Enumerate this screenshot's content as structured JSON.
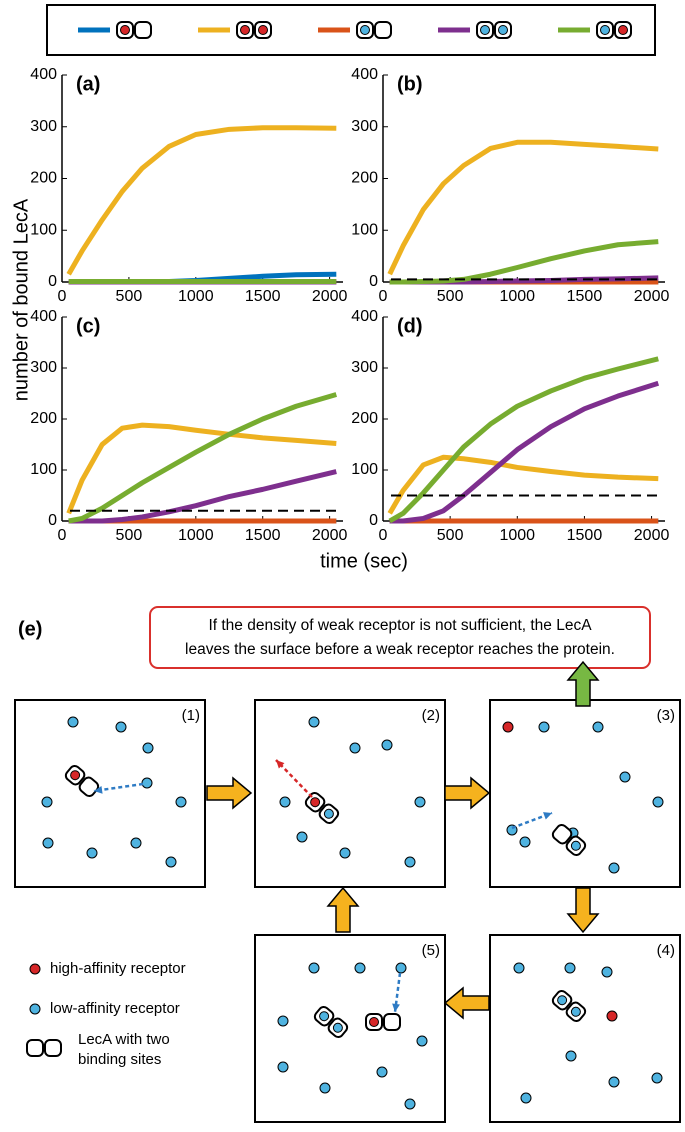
{
  "chart_data": [
    {
      "type": "line",
      "title": "(a)",
      "x": [
        50,
        150,
        300,
        450,
        600,
        800,
        1000,
        1250,
        1500,
        1750,
        2050
      ],
      "series": [
        {
          "color": "#0072bd",
          "values": [
            0,
            0,
            0,
            0,
            0,
            1,
            3,
            7,
            11,
            14,
            15
          ]
        },
        {
          "color": "#edb120",
          "values": [
            15,
            60,
            120,
            175,
            220,
            262,
            285,
            295,
            298,
            298,
            297
          ]
        },
        {
          "color": "#d95319",
          "values": [
            0,
            0,
            0,
            0,
            0,
            0,
            0,
            0,
            0,
            0,
            0
          ]
        },
        {
          "color": "#7e2f8e",
          "values": [
            0,
            0,
            0,
            0,
            0,
            0,
            0,
            0,
            0,
            0,
            0
          ]
        },
        {
          "color": "#77ac30",
          "values": [
            1,
            1,
            1,
            1,
            1,
            1,
            1,
            1,
            1,
            1,
            1
          ]
        }
      ],
      "xlim": [
        0,
        2100
      ],
      "ylim": [
        0,
        400
      ],
      "xticks": [
        0,
        500,
        1000,
        1500,
        2000
      ],
      "yticks": [
        0,
        100,
        200,
        300,
        400
      ]
    },
    {
      "type": "line",
      "title": "(b)",
      "x": [
        50,
        150,
        300,
        450,
        600,
        800,
        1000,
        1250,
        1500,
        1750,
        2050
      ],
      "series": [
        {
          "color": "#0072bd",
          "values": [
            0,
            0,
            0,
            0,
            0,
            0,
            0,
            0,
            0,
            0,
            0
          ]
        },
        {
          "color": "#edb120",
          "values": [
            15,
            70,
            140,
            190,
            225,
            258,
            270,
            270,
            266,
            262,
            257
          ]
        },
        {
          "color": "#d95319",
          "values": [
            0,
            0,
            0,
            0,
            0,
            0,
            0,
            0,
            0,
            0,
            0
          ]
        },
        {
          "color": "#7e2f8e",
          "values": [
            0,
            0,
            0,
            0,
            0,
            1,
            2,
            3,
            5,
            6,
            8
          ]
        },
        {
          "color": "#77ac30",
          "values": [
            0,
            0,
            1,
            2,
            5,
            15,
            28,
            45,
            60,
            72,
            78
          ]
        }
      ],
      "hline": 5,
      "xlim": [
        0,
        2100
      ],
      "ylim": [
        0,
        400
      ],
      "xticks": [
        0,
        500,
        1000,
        1500,
        2000
      ],
      "yticks": [
        0,
        100,
        200,
        300,
        400
      ]
    },
    {
      "type": "line",
      "title": "(c)",
      "x": [
        50,
        150,
        300,
        450,
        600,
        800,
        1000,
        1250,
        1500,
        1750,
        2050
      ],
      "series": [
        {
          "color": "#0072bd",
          "values": [
            0,
            0,
            0,
            0,
            0,
            0,
            0,
            0,
            0,
            0,
            0
          ]
        },
        {
          "color": "#edb120",
          "values": [
            15,
            80,
            150,
            182,
            188,
            185,
            178,
            170,
            163,
            158,
            152
          ]
        },
        {
          "color": "#d95319",
          "values": [
            0,
            0,
            0,
            0,
            0,
            0,
            0,
            0,
            0,
            0,
            0
          ]
        },
        {
          "color": "#7e2f8e",
          "values": [
            0,
            0,
            0,
            3,
            8,
            18,
            30,
            48,
            62,
            78,
            97
          ]
        },
        {
          "color": "#77ac30",
          "values": [
            0,
            5,
            25,
            50,
            75,
            105,
            135,
            170,
            200,
            225,
            248
          ]
        }
      ],
      "hline": 20,
      "xlim": [
        0,
        2100
      ],
      "ylim": [
        0,
        400
      ],
      "xticks": [
        0,
        500,
        1000,
        1500,
        2000
      ],
      "yticks": [
        0,
        100,
        200,
        300,
        400
      ]
    },
    {
      "type": "line",
      "title": "(d)",
      "x": [
        50,
        150,
        300,
        450,
        600,
        800,
        1000,
        1250,
        1500,
        1750,
        2050
      ],
      "series": [
        {
          "color": "#0072bd",
          "values": [
            0,
            0,
            0,
            0,
            0,
            0,
            0,
            0,
            0,
            0,
            0
          ]
        },
        {
          "color": "#edb120",
          "values": [
            15,
            60,
            110,
            125,
            122,
            115,
            105,
            97,
            90,
            86,
            83
          ]
        },
        {
          "color": "#d95319",
          "values": [
            0,
            0,
            0,
            0,
            0,
            0,
            0,
            0,
            0,
            0,
            0
          ]
        },
        {
          "color": "#7e2f8e",
          "values": [
            0,
            0,
            5,
            20,
            50,
            95,
            140,
            185,
            220,
            245,
            270
          ]
        },
        {
          "color": "#77ac30",
          "values": [
            0,
            15,
            55,
            100,
            145,
            190,
            225,
            255,
            280,
            298,
            318
          ]
        }
      ],
      "hline": 50,
      "xlim": [
        0,
        2100
      ],
      "ylim": [
        0,
        400
      ],
      "xticks": [
        0,
        500,
        1000,
        1500,
        2000
      ],
      "yticks": [
        0,
        100,
        200,
        300,
        400
      ]
    }
  ],
  "axis_labels": {
    "y": "number of bound LecA",
    "x": "time (sec)"
  },
  "diagram": {
    "title": "(e)",
    "note": [
      "If the density of weak receptor is not sufficient, the LecA",
      "leaves the surface before a weak receptor reaches the protein."
    ],
    "steps": [
      "(1)",
      "(2)",
      "(3)",
      "(4)",
      "(5)"
    ],
    "legend": [
      "high-affinity receptor",
      "low-affinity receptor",
      "LecA with two",
      "binding sites"
    ]
  }
}
